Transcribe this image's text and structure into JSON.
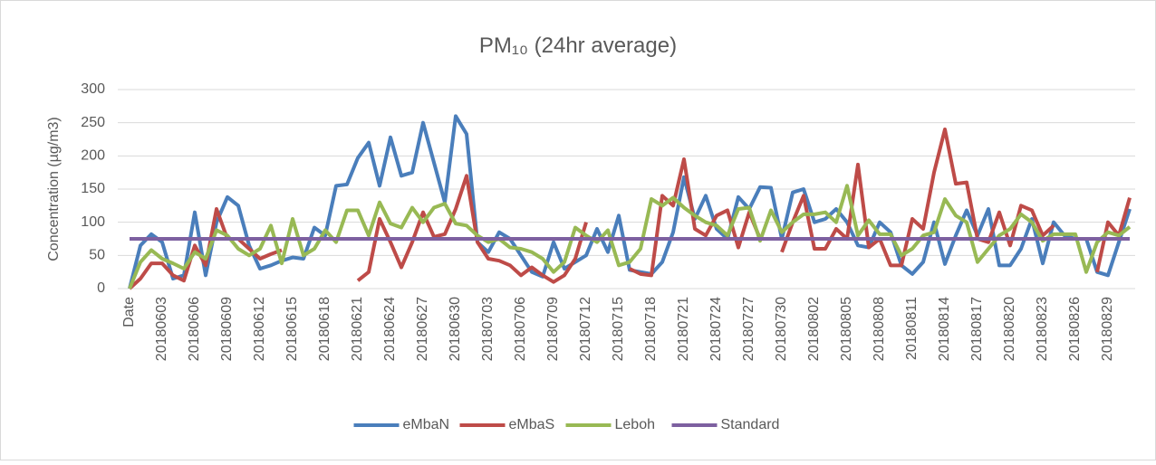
{
  "chart_data": {
    "type": "line",
    "title": "PM₁₀ (24hr average)",
    "y_label": "Concentration (µg/m3)",
    "categories": [
      "Date",
      null,
      null,
      "20180603",
      null,
      null,
      "20180606",
      null,
      null,
      "20180609",
      null,
      null,
      "20180612",
      null,
      null,
      "20180615",
      null,
      null,
      "20180618",
      null,
      null,
      "20180621",
      null,
      null,
      "20180624",
      null,
      null,
      "20180627",
      null,
      null,
      "20180630",
      null,
      null,
      "20180703",
      null,
      null,
      "20180706",
      null,
      null,
      "20180709",
      null,
      null,
      "20180712",
      null,
      null,
      "20180715",
      null,
      null,
      "20180718",
      null,
      null,
      "20180721",
      null,
      null,
      "20180724",
      null,
      null,
      "20180727",
      null,
      null,
      "20180730",
      null,
      null,
      "20180802",
      null,
      null,
      "20180805",
      null,
      null,
      "20180808",
      null,
      null,
      "20180811",
      null,
      null,
      "20180814",
      null,
      null,
      "20180817",
      null,
      null,
      "20180820",
      null,
      null,
      "20180823",
      null,
      null,
      "20180826",
      null,
      null,
      "20180829",
      null,
      null
    ],
    "series": [
      {
        "name": "eMbaN",
        "color": "#4a7ebb",
        "values": [
          0,
          65,
          82,
          70,
          15,
          20,
          115,
          20,
          100,
          138,
          125,
          65,
          30,
          35,
          42,
          47,
          45,
          92,
          80,
          155,
          157,
          197,
          220,
          155,
          228,
          170,
          175,
          250,
          190,
          130,
          260,
          233,
          70,
          55,
          85,
          75,
          50,
          25,
          18,
          70,
          30,
          40,
          50,
          90,
          55,
          110,
          28,
          25,
          22,
          40,
          85,
          168,
          105,
          140,
          90,
          75,
          138,
          120,
          153,
          152,
          75,
          145,
          150,
          100,
          105,
          120,
          100,
          65,
          62,
          100,
          85,
          35,
          22,
          40,
          100,
          37,
          80,
          118,
          80,
          120,
          35,
          35,
          60,
          105,
          38,
          100,
          80,
          75,
          75,
          25,
          20,
          70,
          120
        ]
      },
      {
        "name": "eMbaS",
        "color": "#be4b48",
        "values": [
          0,
          15,
          38,
          38,
          20,
          12,
          65,
          35,
          120,
          75,
          75,
          60,
          45,
          52,
          58,
          null,
          null,
          null,
          null,
          null,
          null,
          12,
          25,
          105,
          70,
          32,
          70,
          115,
          78,
          82,
          120,
          170,
          70,
          45,
          42,
          35,
          20,
          32,
          20,
          10,
          20,
          45,
          100,
          null,
          null,
          null,
          30,
          22,
          20,
          140,
          125,
          195,
          90,
          80,
          110,
          118,
          62,
          115,
          75,
          null,
          55,
          100,
          140,
          60,
          60,
          90,
          75,
          187,
          62,
          75,
          35,
          35,
          105,
          90,
          175,
          240,
          158,
          160,
          75,
          70,
          115,
          65,
          125,
          118,
          80,
          95,
          null,
          null,
          null,
          25,
          100,
          80,
          137
        ]
      },
      {
        "name": "Leboh",
        "color": "#98b954",
        "values": [
          0,
          40,
          58,
          45,
          38,
          30,
          55,
          45,
          88,
          80,
          60,
          50,
          60,
          95,
          38,
          105,
          50,
          60,
          88,
          70,
          118,
          118,
          80,
          130,
          98,
          92,
          122,
          100,
          122,
          128,
          98,
          95,
          80,
          70,
          75,
          62,
          60,
          55,
          45,
          25,
          40,
          92,
          80,
          70,
          88,
          35,
          40,
          60,
          135,
          125,
          137,
          122,
          110,
          100,
          95,
          80,
          120,
          122,
          72,
          118,
          85,
          100,
          112,
          112,
          115,
          100,
          155,
          80,
          103,
          82,
          82,
          50,
          60,
          80,
          85,
          135,
          110,
          100,
          40,
          60,
          80,
          90,
          112,
          100,
          72,
          82,
          82,
          82,
          25,
          70,
          85,
          80,
          93
        ]
      },
      {
        "name": "Standard",
        "color": "#7d60a0",
        "values": [
          75,
          75,
          75,
          75,
          75,
          75,
          75,
          75,
          75,
          75,
          75,
          75,
          75,
          75,
          75,
          75,
          75,
          75,
          75,
          75,
          75,
          75,
          75,
          75,
          75,
          75,
          75,
          75,
          75,
          75,
          75,
          75,
          75,
          75,
          75,
          75,
          75,
          75,
          75,
          75,
          75,
          75,
          75,
          75,
          75,
          75,
          75,
          75,
          75,
          75,
          75,
          75,
          75,
          75,
          75,
          75,
          75,
          75,
          75,
          75,
          75,
          75,
          75,
          75,
          75,
          75,
          75,
          75,
          75,
          75,
          75,
          75,
          75,
          75,
          75,
          75,
          75,
          75,
          75,
          75,
          75,
          75,
          75,
          75,
          75,
          75,
          75,
          75,
          75,
          75,
          75,
          75,
          75
        ]
      }
    ],
    "ylim": [
      0,
      300
    ],
    "yticks": [
      0,
      50,
      100,
      150,
      200,
      250,
      300
    ],
    "grid": true,
    "legend": "bottom"
  }
}
